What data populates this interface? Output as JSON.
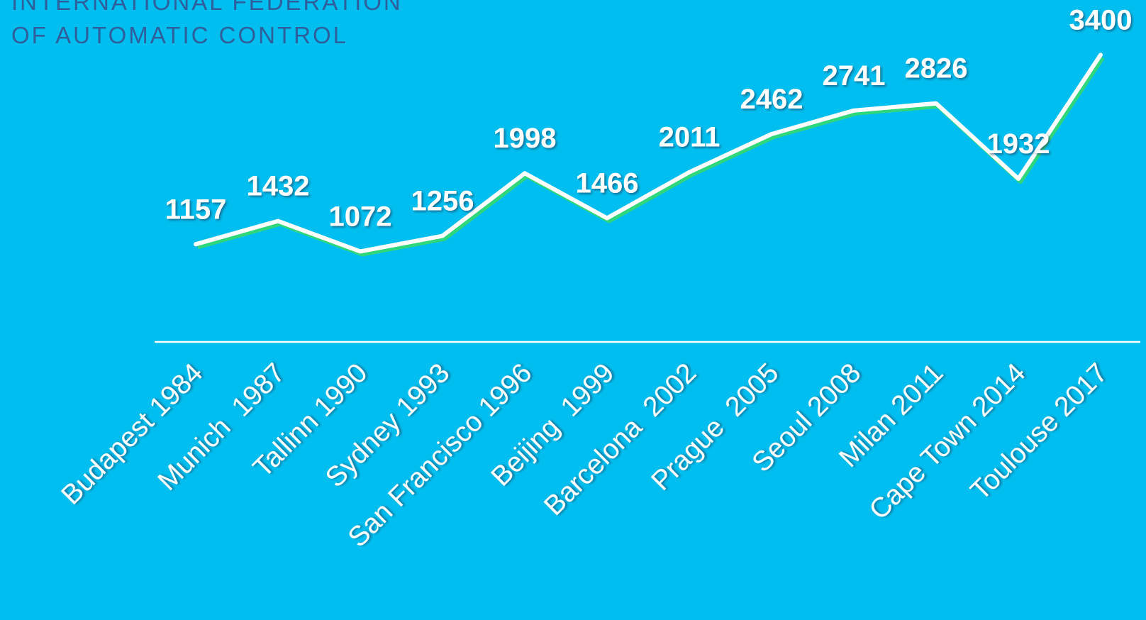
{
  "chart_data": {
    "type": "line",
    "title_lines": [
      "INTERNATIONAL FEDERATION",
      "OF AUTOMATIC CONTROL"
    ],
    "categories": [
      "Budapest 1984",
      "Munich  1987",
      "Tallinn 1990",
      "Sydney 1993",
      "San Francisco 1996",
      "Beijing  1999",
      "Barcelona  2002",
      "Prague  2005",
      "Seoul 2008",
      "Milan 2011",
      "Cape Town 2014",
      "Toulouse 2017"
    ],
    "values": [
      1157,
      1432,
      1072,
      1256,
      1998,
      1466,
      2011,
      2462,
      2741,
      2826,
      1932,
      3400
    ],
    "color": "#ffffff"
  }
}
